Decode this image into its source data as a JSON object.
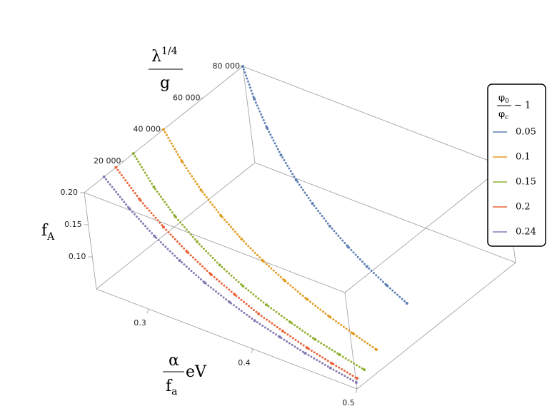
{
  "chart_data": {
    "type": "scatter3d",
    "xlabel": {
      "num": "α",
      "den": "f",
      "den_sub": "a",
      "unit": "eV"
    },
    "ylabel": {
      "base": "λ",
      "sup": "1/4",
      "den": "g"
    },
    "zlabel": {
      "base": "f",
      "sub": "A"
    },
    "legend_title": {
      "num": "φ",
      "num_sub": "0",
      "den": "φ",
      "den_sub": "c",
      "rest": "− 1"
    },
    "legend": "right",
    "xlim": [
      0.25,
      0.5
    ],
    "ylim": [
      0,
      80000
    ],
    "zlim": [
      0.05,
      0.2
    ],
    "xticks": [
      0.3,
      0.4,
      0.5
    ],
    "yticks": [
      {
        "value": 20000,
        "label": "20 000"
      },
      {
        "value": 40000,
        "label": "40 000"
      },
      {
        "value": 60000,
        "label": "60 000"
      },
      {
        "value": 80000,
        "label": "80 000"
      }
    ],
    "zticks": [
      {
        "value": 0.1,
        "label": "0.10"
      },
      0.15,
      {
        "value": 0.2,
        "label": "0.20"
      }
    ],
    "x": [
      0.25,
      0.275,
      0.3,
      0.325,
      0.35,
      0.375,
      0.4,
      0.425,
      0.45,
      0.475,
      0.5
    ],
    "series": [
      {
        "name": "0.05",
        "color": "#5e81b5",
        "y": [
          80000,
          71980,
          64760,
          58260,
          52420,
          47160,
          42430,
          38180,
          34350,
          30900,
          27800
        ],
        "z": [
          0.2,
          0.185,
          0.173,
          0.162,
          0.153,
          0.145,
          0.137,
          0.131,
          0.125,
          0.12,
          0.115
        ]
      },
      {
        "name": "0.1",
        "color": "#e19c24",
        "y": [
          40000,
          35190,
          30960,
          27230,
          23960,
          21080,
          18540,
          16310,
          14350,
          12620,
          11100
        ],
        "z": [
          0.2,
          0.178,
          0.159,
          0.144,
          0.131,
          0.12,
          0.111,
          0.103,
          0.096,
          0.09,
          0.084
        ]
      },
      {
        "name": "0.15",
        "color": "#8fb032",
        "y": [
          24800,
          20860,
          17550,
          14760,
          12420,
          10450,
          8790,
          7390,
          6220,
          5230,
          4400
        ],
        "z": [
          0.2,
          0.173,
          0.151,
          0.134,
          0.119,
          0.107,
          0.097,
          0.089,
          0.081,
          0.075,
          0.069
        ]
      },
      {
        "name": "0.2",
        "color": "#eb6235",
        "y": [
          16000,
          13700,
          11600,
          9600,
          7800,
          6200,
          4700,
          3400,
          2300,
          1300,
          600
        ],
        "z": [
          0.2,
          0.171,
          0.149,
          0.131,
          0.116,
          0.104,
          0.093,
          0.085,
          0.077,
          0.071,
          0.065
        ]
      },
      {
        "name": "0.24",
        "color": "#8778b3",
        "y": [
          10000,
          8400,
          7000,
          5700,
          4500,
          3400,
          2500,
          1700,
          1000,
          400,
          0
        ],
        "z": [
          0.2,
          0.17,
          0.146,
          0.127,
          0.111,
          0.099,
          0.088,
          0.08,
          0.072,
          0.066,
          0.06
        ]
      }
    ]
  }
}
